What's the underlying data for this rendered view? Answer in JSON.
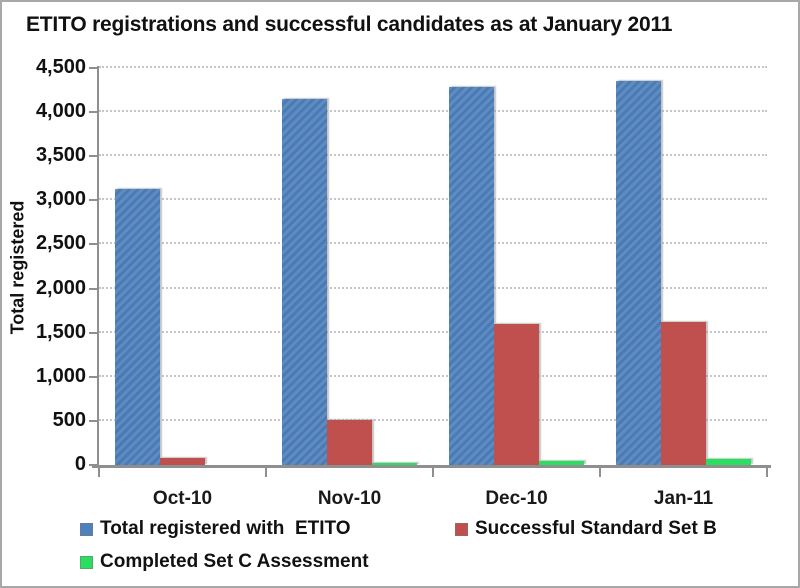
{
  "chart_data": {
    "type": "bar",
    "title": "ETITO registrations and successful candidates as at January 2011",
    "ylabel": "Total registered",
    "categories": [
      "Oct-10",
      "Nov-10",
      "Dec-10",
      "Jan-11"
    ],
    "series": [
      {
        "name": "Total registered with  ETITO",
        "color": "#4F81BD",
        "values": [
          3130,
          4150,
          4290,
          4350
        ]
      },
      {
        "name": "Successful Standard Set B",
        "color": "#C0504D",
        "values": [
          80,
          510,
          1600,
          1620
        ]
      },
      {
        "name": "Completed Set C Assessment",
        "color": "#2ADF60",
        "values": [
          0,
          25,
          50,
          70
        ]
      }
    ],
    "ylim": [
      0,
      4500
    ],
    "ytick_step": 500,
    "ytick_labels": [
      "0",
      "500",
      "1,000",
      "1,500",
      "2,000",
      "2,500",
      "3,000",
      "3,500",
      "4,000",
      "4,500"
    ],
    "grid": "horizontal-dotted",
    "legend_position": "bottom-left-two-columns",
    "axis_color": "#8f8f8f",
    "gridline_color": "#c6c6c6",
    "background_color": "#ffffff",
    "border_color": "#a8a8a8"
  }
}
